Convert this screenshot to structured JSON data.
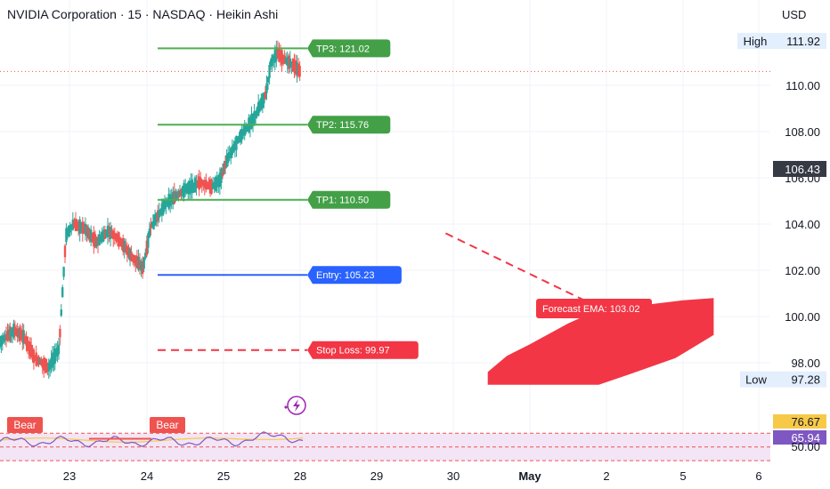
{
  "header": {
    "title": "NVIDIA Corporation · 15 · NASDAQ · Heikin Ashi",
    "currency": "USD"
  },
  "colors": {
    "up": "#26a69a",
    "down": "#ef5350",
    "tp_line": "#4caf50",
    "tp_label": "#43a047",
    "entry": "#2962ff",
    "stop": "#f23645",
    "forecast": "#f23645",
    "axis_text": "#131722",
    "grid": "#f0f3fa",
    "rsi_band": "#f3e5f5",
    "rsi_line": "#7e57c2",
    "rsi_ma": "#f7c948",
    "rsi_label": "#7e57c2"
  },
  "chart_data": {
    "type": "candlestick",
    "price_axis": {
      "ticks": [
        98,
        100,
        102,
        104,
        106,
        108,
        110
      ],
      "tick_labels": [
        "98.00",
        "100.00",
        "102.00",
        "104.00",
        "106.00",
        "108.00",
        "110.00"
      ],
      "ylim": [
        95.8,
        113.4
      ]
    },
    "time_axis": {
      "labels": [
        "23",
        "24",
        "25",
        "28",
        "29",
        "30",
        "May",
        "2",
        "5",
        "6"
      ],
      "bold": [
        "May"
      ]
    },
    "current_price": {
      "value": 106.43,
      "label": "106.43"
    },
    "last_price_line": 110.6,
    "high": {
      "label": "High",
      "value": "111.92",
      "price": 111.92
    },
    "low": {
      "label": "Low",
      "value": "97.28",
      "price": 97.28
    },
    "levels": [
      {
        "id": "tp3",
        "label": "TP3: 121.02",
        "price": 111.6,
        "style": "tp"
      },
      {
        "id": "tp2",
        "label": "TP2: 115.76",
        "price": 108.3,
        "style": "tp"
      },
      {
        "id": "tp1",
        "label": "TP1: 110.50",
        "price": 105.05,
        "style": "tp"
      },
      {
        "id": "entry",
        "label": "Entry: 105.23",
        "price": 101.8,
        "style": "entry"
      },
      {
        "id": "stop",
        "label": "Stop Loss: 99.97",
        "price": 98.55,
        "style": "stop"
      }
    ],
    "forecast": {
      "label": "Forecast EMA: 103.02",
      "trend_line": [
        [
          27.9,
          103.6
        ],
        [
          29.9,
          100.4
        ]
      ],
      "band_top": [
        [
          28.45,
          97.6
        ],
        [
          28.7,
          98.3
        ],
        [
          29.0,
          98.8
        ],
        [
          29.5,
          99.7
        ],
        [
          29.9,
          100.3
        ],
        [
          30.5,
          100.5
        ],
        [
          31.0,
          100.7
        ],
        [
          31.4,
          100.8
        ]
      ],
      "band_bottom": [
        [
          28.45,
          97.05
        ],
        [
          29.9,
          97.05
        ],
        [
          30.3,
          97.5
        ],
        [
          30.9,
          98.2
        ],
        [
          31.4,
          99.2
        ]
      ]
    },
    "candles_path": [
      [
        22.0,
        98.9
      ],
      [
        22.2,
        99.4
      ],
      [
        22.35,
        99.1
      ],
      [
        22.5,
        98.2
      ],
      [
        22.7,
        97.8
      ],
      [
        22.85,
        98.6
      ],
      [
        22.95,
        103.5
      ],
      [
        23.05,
        104.0
      ],
      [
        23.2,
        103.8
      ],
      [
        23.35,
        103.2
      ],
      [
        23.5,
        103.7
      ],
      [
        23.65,
        103.3
      ],
      [
        23.8,
        102.6
      ],
      [
        23.95,
        102.1
      ],
      [
        24.05,
        103.9
      ],
      [
        24.25,
        104.9
      ],
      [
        24.5,
        105.5
      ],
      [
        24.7,
        105.8
      ],
      [
        24.85,
        105.6
      ],
      [
        24.95,
        105.9
      ],
      [
        25.05,
        106.8
      ],
      [
        25.2,
        107.7
      ],
      [
        25.4,
        108.6
      ],
      [
        25.55,
        109.6
      ],
      [
        25.62,
        111.0
      ],
      [
        25.7,
        111.4
      ],
      [
        25.8,
        111.1
      ],
      [
        25.9,
        110.9
      ],
      [
        26.0,
        110.6
      ]
    ],
    "rsi": {
      "labels": [
        "Bear",
        "Bear"
      ],
      "value_labels": [
        "76.67",
        "65.94",
        "50.00"
      ],
      "bands": [
        70,
        50,
        30
      ],
      "ylim": [
        25,
        95
      ]
    },
    "watermark_icon": "lightning-icon"
  }
}
